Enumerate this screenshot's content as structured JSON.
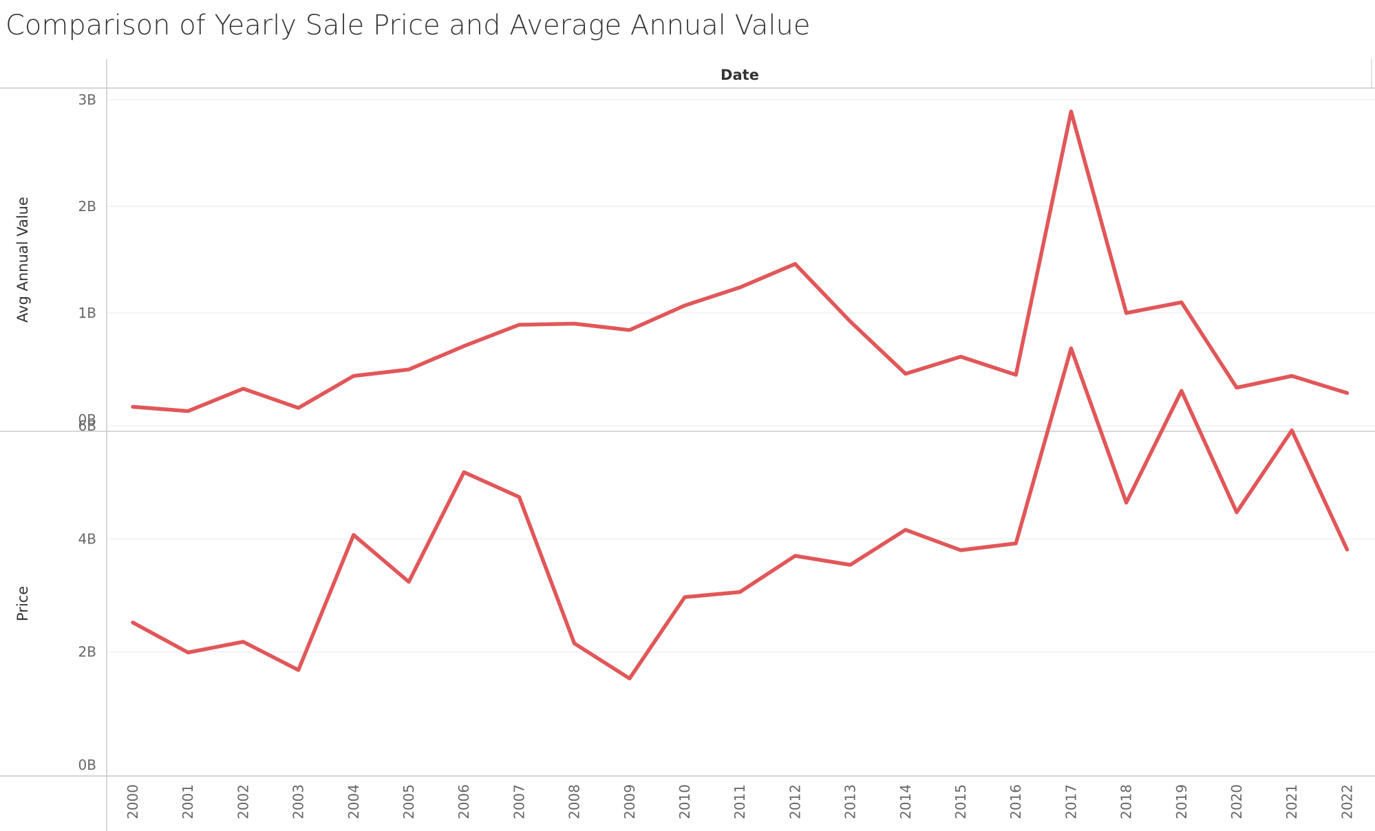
{
  "title": "Comparison of Yearly Sale Price and Average Annual Value",
  "chart_data": {
    "type": "line",
    "header": "Date",
    "x": [
      "2000",
      "2001",
      "2002",
      "2003",
      "2004",
      "2005",
      "2006",
      "2007",
      "2008",
      "2009",
      "2010",
      "2011",
      "2012",
      "2013",
      "2014",
      "2015",
      "2016",
      "2017",
      "2018",
      "2019",
      "2020",
      "2021",
      "2022"
    ],
    "panels": [
      {
        "ylabel": "Avg Annual Value",
        "yticks": [
          0,
          1000000000,
          2000000000,
          3000000000
        ],
        "ytick_labels": [
          "0B",
          "1B",
          "2B",
          "3B"
        ],
        "ylim": [
          0,
          3050000000
        ],
        "grid": true,
        "color": "#e15759",
        "values": [
          120000000,
          80000000,
          290000000,
          110000000,
          410000000,
          470000000,
          690000000,
          890000000,
          900000000,
          840000000,
          1070000000,
          1240000000,
          1460000000,
          920000000,
          430000000,
          590000000,
          420000000,
          2890000000,
          1000000000,
          1100000000,
          300000000,
          410000000,
          250000000
        ]
      },
      {
        "ylabel": "Price",
        "yticks": [
          0,
          2000000000,
          4000000000,
          6000000000
        ],
        "ytick_labels": [
          "0B",
          "2B",
          "4B",
          "6B"
        ],
        "ylim": [
          0,
          7500000000
        ],
        "grid": true,
        "color": "#e15759",
        "values": [
          2520000000,
          1990000000,
          2180000000,
          1680000000,
          4070000000,
          3240000000,
          5180000000,
          4740000000,
          2150000000,
          1530000000,
          2970000000,
          3060000000,
          3700000000,
          3540000000,
          4160000000,
          3800000000,
          3920000000,
          7370000000,
          4640000000,
          6620000000,
          4470000000,
          5920000000,
          3810000000
        ]
      }
    ]
  }
}
